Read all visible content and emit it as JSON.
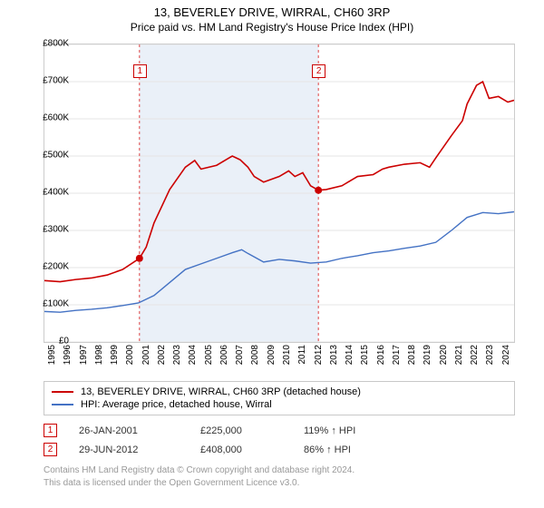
{
  "title_line1": "13, BEVERLEY DRIVE, WIRRAL, CH60 3RP",
  "title_line2": "Price paid vs. HM Land Registry's House Price Index (HPI)",
  "chart": {
    "type": "line",
    "background_color": "#ffffff",
    "grid_color": "#e5e5e5",
    "trend_band_color": "#eaf0f8",
    "trend_band_x": [
      2001.07,
      2012.5
    ],
    "xlim": [
      1995,
      2025
    ],
    "ylim": [
      0,
      800000
    ],
    "ytick_step": 100000,
    "yticks_labels": [
      "£0",
      "£100K",
      "£200K",
      "£300K",
      "£400K",
      "£500K",
      "£600K",
      "£700K",
      "£800K"
    ],
    "xticks": [
      1995,
      1996,
      1997,
      1998,
      1999,
      2000,
      2001,
      2002,
      2003,
      2004,
      2005,
      2006,
      2007,
      2008,
      2009,
      2010,
      2011,
      2012,
      2013,
      2014,
      2015,
      2016,
      2017,
      2018,
      2019,
      2020,
      2021,
      2022,
      2023,
      2024
    ],
    "label_fontsize": 10,
    "series": [
      {
        "name": "house",
        "label": "13, BEVERLEY DRIVE, WIRRAL, CH60 3RP (detached house)",
        "color": "#cc0000",
        "line_width": 1.6,
        "data": [
          [
            1995,
            165000
          ],
          [
            1996,
            162000
          ],
          [
            1997,
            168000
          ],
          [
            1998,
            172000
          ],
          [
            1999,
            180000
          ],
          [
            2000,
            195000
          ],
          [
            2001.07,
            225000
          ],
          [
            2001.5,
            255000
          ],
          [
            2002,
            320000
          ],
          [
            2003,
            410000
          ],
          [
            2004,
            470000
          ],
          [
            2004.6,
            488000
          ],
          [
            2005,
            465000
          ],
          [
            2006,
            475000
          ],
          [
            2007,
            500000
          ],
          [
            2007.5,
            490000
          ],
          [
            2008,
            470000
          ],
          [
            2008.4,
            445000
          ],
          [
            2009,
            430000
          ],
          [
            2010,
            445000
          ],
          [
            2010.6,
            460000
          ],
          [
            2011,
            445000
          ],
          [
            2011.5,
            455000
          ],
          [
            2012,
            420000
          ],
          [
            2012.5,
            408000
          ],
          [
            2013,
            410000
          ],
          [
            2014,
            420000
          ],
          [
            2015,
            445000
          ],
          [
            2016,
            450000
          ],
          [
            2016.6,
            465000
          ],
          [
            2017,
            470000
          ],
          [
            2018,
            478000
          ],
          [
            2019,
            482000
          ],
          [
            2019.6,
            470000
          ],
          [
            2020,
            495000
          ],
          [
            2021,
            555000
          ],
          [
            2021.7,
            595000
          ],
          [
            2022,
            640000
          ],
          [
            2022.6,
            690000
          ],
          [
            2023,
            700000
          ],
          [
            2023.4,
            655000
          ],
          [
            2024,
            660000
          ],
          [
            2024.6,
            645000
          ],
          [
            2025,
            650000
          ]
        ]
      },
      {
        "name": "hpi",
        "label": "HPI: Average price, detached house, Wirral",
        "color": "#4472c4",
        "line_width": 1.4,
        "data": [
          [
            1995,
            82000
          ],
          [
            1996,
            80000
          ],
          [
            1997,
            85000
          ],
          [
            1998,
            88000
          ],
          [
            1999,
            92000
          ],
          [
            2000,
            98000
          ],
          [
            2001,
            105000
          ],
          [
            2002,
            125000
          ],
          [
            2003,
            160000
          ],
          [
            2004,
            195000
          ],
          [
            2005,
            210000
          ],
          [
            2006,
            225000
          ],
          [
            2007,
            240000
          ],
          [
            2007.6,
            248000
          ],
          [
            2008,
            238000
          ],
          [
            2009,
            215000
          ],
          [
            2010,
            222000
          ],
          [
            2011,
            218000
          ],
          [
            2012,
            212000
          ],
          [
            2013,
            215000
          ],
          [
            2014,
            225000
          ],
          [
            2015,
            232000
          ],
          [
            2016,
            240000
          ],
          [
            2017,
            245000
          ],
          [
            2018,
            252000
          ],
          [
            2019,
            258000
          ],
          [
            2020,
            268000
          ],
          [
            2021,
            300000
          ],
          [
            2022,
            335000
          ],
          [
            2023,
            348000
          ],
          [
            2024,
            345000
          ],
          [
            2025,
            350000
          ]
        ]
      }
    ],
    "sale_markers": [
      {
        "n": "1",
        "x": 2001.07,
        "y": 225000
      },
      {
        "n": "2",
        "x": 2012.5,
        "y": 408000
      }
    ]
  },
  "legend": {
    "items": [
      {
        "color": "#cc0000",
        "label": "13, BEVERLEY DRIVE, WIRRAL, CH60 3RP (detached house)"
      },
      {
        "color": "#4472c4",
        "label": "HPI: Average price, detached house, Wirral"
      }
    ]
  },
  "transactions": [
    {
      "n": "1",
      "date": "26-JAN-2001",
      "price": "£225,000",
      "pct": "119% ↑ HPI"
    },
    {
      "n": "2",
      "date": "29-JUN-2012",
      "price": "£408,000",
      "pct": "86% ↑ HPI"
    }
  ],
  "footer_line1": "Contains HM Land Registry data © Crown copyright and database right 2024.",
  "footer_line2": "This data is licensed under the Open Government Licence v3.0."
}
